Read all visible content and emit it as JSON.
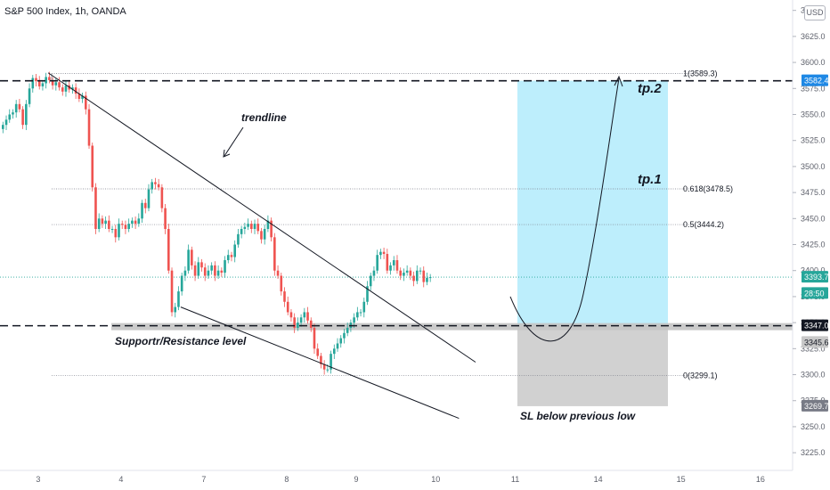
{
  "title": "S&P 500 Index, 1h, OANDA",
  "currency_button": "USD",
  "chart_data": {
    "type": "candlestick",
    "title": "S&P 500 Index, 1h, OANDA",
    "ylim": [
      3208,
      3660
    ],
    "y_ticks": [
      3225.0,
      3250.0,
      3275.0,
      3300.0,
      3325.0,
      3350.0,
      3375.0,
      3400.0,
      3425.0,
      3450.0,
      3475.0,
      3500.0,
      3525.0,
      3550.0,
      3575.0,
      3600.0,
      3625.0,
      3650.0
    ],
    "x_ticks": [
      {
        "label": "3",
        "bar": 11
      },
      {
        "label": "4",
        "bar": 36
      },
      {
        "label": "7",
        "bar": 61
      },
      {
        "label": "8",
        "bar": 86
      },
      {
        "label": "9",
        "bar": 107
      },
      {
        "label": "10",
        "bar": 131
      },
      {
        "label": "11",
        "bar": 155
      },
      {
        "label": "14",
        "bar": 180
      },
      {
        "label": "15",
        "bar": 205
      },
      {
        "label": "16",
        "bar": 229
      }
    ],
    "colors": {
      "up": "#26a69a",
      "down": "#ef5350",
      "price_line": "#26a69a",
      "target_zone": "#bdeefc",
      "stop_zone": "#d1d1d1"
    },
    "candles_close": [
      3540,
      3545,
      3550,
      3552,
      3560,
      3555,
      3540,
      3560,
      3575,
      3585,
      3582,
      3577,
      3580,
      3586,
      3583,
      3578,
      3581,
      3576,
      3572,
      3578,
      3574,
      3576,
      3570,
      3565,
      3568,
      3555,
      3520,
      3480,
      3440,
      3450,
      3445,
      3448,
      3440,
      3440,
      3432,
      3445,
      3444,
      3440,
      3445,
      3448,
      3445,
      3450,
      3465,
      3460,
      3478,
      3485,
      3483,
      3480,
      3460,
      3440,
      3400,
      3360,
      3365,
      3380,
      3395,
      3400,
      3420,
      3405,
      3395,
      3408,
      3403,
      3395,
      3400,
      3405,
      3395,
      3400,
      3398,
      3410,
      3415,
      3413,
      3425,
      3435,
      3440,
      3442,
      3445,
      3440,
      3445,
      3438,
      3430,
      3440,
      3448,
      3432,
      3400,
      3395,
      3380,
      3370,
      3360,
      3355,
      3345,
      3350,
      3355,
      3360,
      3352,
      3345,
      3325,
      3318,
      3310,
      3305,
      3305,
      3320,
      3325,
      3330,
      3335,
      3340,
      3345,
      3350,
      3355,
      3360,
      3360,
      3370,
      3385,
      3395,
      3400,
      3415,
      3418,
      3416,
      3400,
      3405,
      3410,
      3400,
      3395,
      3398,
      3400,
      3395,
      3390,
      3400,
      3400,
      3389,
      3393,
      3393.7
    ],
    "current_price": 3393.7,
    "countdown": "28:50",
    "trendlines": [
      {
        "from": {
          "bar": 14,
          "price": 3590
        },
        "to": {
          "bar": 143,
          "price": 3312
        }
      },
      {
        "from": {
          "bar": 54,
          "price": 3365
        },
        "to": {
          "bar": 138,
          "price": 3258
        }
      }
    ],
    "support_resistance": 3347.0,
    "tp2_line": 3582.4,
    "fib_levels": [
      {
        "label": "1(3589.3)",
        "price": 3589.3
      },
      {
        "label": "0.618(3478.5)",
        "price": 3478.5
      },
      {
        "label": "0.5(3444.2)",
        "price": 3444.2
      },
      {
        "label": "0(3299.1)",
        "price": 3299.1
      }
    ],
    "position": {
      "entry": 3347.0,
      "target": 3582.4,
      "stop": 3269.7,
      "label_entry_2": 3345.6
    },
    "price_tags": [
      {
        "label": "3582.4",
        "price": 3582.4,
        "bg": "#1e88e5",
        "fg": "#ffffff"
      },
      {
        "label": "3393.7",
        "price": 3393.7,
        "bg": "#26a69a",
        "fg": "#ffffff"
      },
      {
        "label": "28:50",
        "price": 3378.0,
        "bg": "#26a69a",
        "fg": "#ffffff"
      },
      {
        "label": "3347.0",
        "price": 3347.0,
        "bg": "#131722",
        "fg": "#ffffff"
      },
      {
        "label": "3345.6",
        "price": 3331.0,
        "bg": "#c8c8c8",
        "fg": "#131722"
      },
      {
        "label": "3269.7",
        "price": 3269.7,
        "bg": "#787b86",
        "fg": "#ffffff"
      }
    ],
    "annotations": {
      "trendline": "trendline",
      "tp1": "tp.1",
      "tp2": "tp.2",
      "support": "Supportr/Resistance level",
      "sl": "SL below previous low"
    }
  }
}
